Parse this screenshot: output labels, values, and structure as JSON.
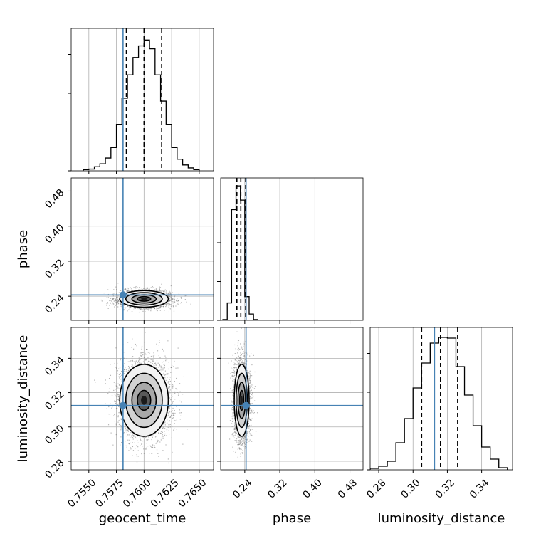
{
  "chart_data": {
    "type": "corner",
    "parameters": [
      "geocent_time",
      "phase",
      "luminosity_distance"
    ],
    "truth_color": "#4682b4",
    "truths": {
      "geocent_time": 0.7581,
      "phase": 0.243,
      "luminosity_distance": 0.3125
    },
    "ranges": {
      "geocent_time": [
        0.7534,
        0.7663
      ],
      "phase": [
        0.185,
        0.51
      ],
      "luminosity_distance": [
        0.275,
        0.358
      ]
    },
    "ticks": {
      "geocent_time": [
        {
          "value": 0.755,
          "label": "0.7550"
        },
        {
          "value": 0.7575,
          "label": "0.7575"
        },
        {
          "value": 0.76,
          "label": "0.7600"
        },
        {
          "value": 0.7625,
          "label": "0.7625"
        },
        {
          "value": 0.765,
          "label": "0.7650"
        }
      ],
      "phase": [
        {
          "value": 0.24,
          "label": "0.24"
        },
        {
          "value": 0.32,
          "label": "0.32"
        },
        {
          "value": 0.4,
          "label": "0.40"
        },
        {
          "value": 0.48,
          "label": "0.48"
        }
      ],
      "luminosity_distance": [
        {
          "value": 0.28,
          "label": "0.28"
        },
        {
          "value": 0.3,
          "label": "0.30"
        },
        {
          "value": 0.32,
          "label": "0.32"
        },
        {
          "value": 0.34,
          "label": "0.34"
        }
      ]
    },
    "quantiles": {
      "geocent_time": [
        0.7584,
        0.76,
        0.7616
      ],
      "phase": [
        0.222,
        0.231,
        0.242
      ],
      "luminosity_distance": [
        0.305,
        0.316,
        0.326
      ]
    },
    "histograms": {
      "geocent_time": {
        "edges": [
          0.7545,
          0.755,
          0.7555,
          0.756,
          0.7565,
          0.757,
          0.7575,
          0.758,
          0.7585,
          0.759,
          0.7595,
          0.76,
          0.7605,
          0.761,
          0.7615,
          0.762,
          0.7625,
          0.763,
          0.7635,
          0.764,
          0.7645,
          0.765
        ],
        "counts": [
          2,
          3,
          7,
          12,
          22,
          40,
          80,
          125,
          165,
          195,
          215,
          225,
          210,
          165,
          120,
          80,
          40,
          20,
          10,
          5,
          2
        ],
        "ymax": 245
      },
      "phase": {
        "edges": [
          0.19,
          0.2,
          0.21,
          0.22,
          0.23,
          0.24,
          0.25,
          0.26,
          0.27
        ],
        "counts": [
          1,
          22,
          140,
          170,
          152,
          30,
          8,
          1
        ],
        "ymax": 180
      },
      "luminosity_distance": {
        "edges": [
          0.275,
          0.28,
          0.285,
          0.29,
          0.295,
          0.3,
          0.305,
          0.31,
          0.315,
          0.32,
          0.325,
          0.33,
          0.335,
          0.34,
          0.345,
          0.35,
          0.355
        ],
        "counts": [
          2,
          5,
          12,
          38,
          72,
          115,
          150,
          178,
          186,
          185,
          145,
          105,
          62,
          32,
          15,
          3
        ],
        "ymax": 200
      }
    },
    "joint": [
      {
        "x": "geocent_time",
        "y": "phase",
        "center": [
          0.76,
          0.234
        ],
        "sd": [
          0.0011,
          0.0095
        ],
        "scatter_count": 3300
      },
      {
        "x": "geocent_time",
        "y": "luminosity_distance",
        "center": [
          0.76,
          0.3155
        ],
        "sd": [
          0.0011,
          0.0105
        ],
        "scatter_count": 3800
      },
      {
        "x": "phase",
        "y": "luminosity_distance",
        "center": [
          0.233,
          0.3155
        ],
        "sd": [
          0.0085,
          0.0105
        ],
        "scatter_count": 3600
      }
    ],
    "grid": true
  }
}
